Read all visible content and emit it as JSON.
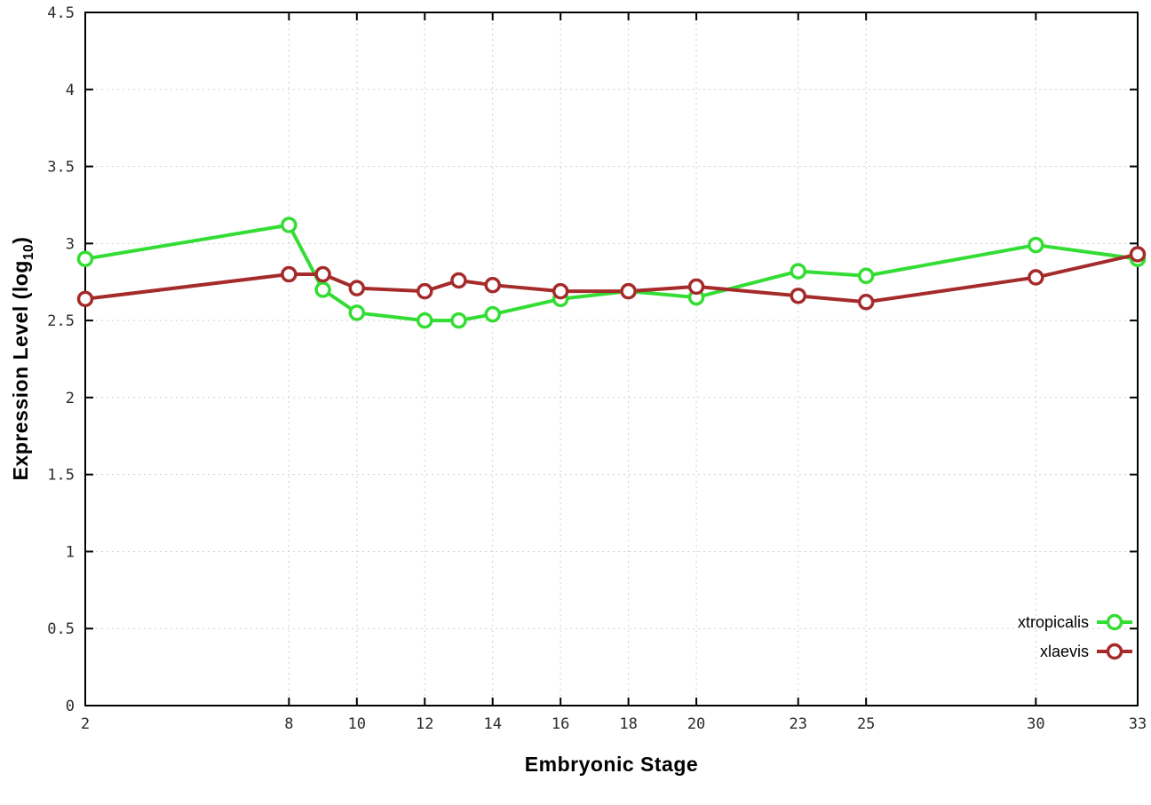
{
  "chart_data": {
    "type": "line",
    "xlabel": "Embryonic Stage",
    "ylabel": "Expression Level (log10)",
    "ylabel_parts": {
      "pre": "Expression Level (log",
      "sub": "10",
      "post": ")"
    },
    "xlim": [
      2,
      33
    ],
    "ylim": [
      0,
      4.5
    ],
    "x_ticks": [
      2,
      8,
      10,
      12,
      14,
      16,
      18,
      20,
      23,
      25,
      30,
      33
    ],
    "x_tick_labels": [
      "2",
      "8",
      "10",
      "12",
      "14",
      "16",
      "18",
      "20",
      "23",
      "25",
      "30",
      "33"
    ],
    "y_ticks": [
      0,
      0.5,
      1,
      1.5,
      2,
      2.5,
      3,
      3.5,
      4,
      4.5
    ],
    "y_tick_labels": [
      "0",
      "0.5",
      "1",
      "1.5",
      "2",
      "2.5",
      "3",
      "3.5",
      "4",
      "4.5"
    ],
    "grid": true,
    "grid_style": "dotted",
    "legend_position": "bottom-right-inside",
    "marker": "open-circle",
    "x": [
      2,
      8,
      9,
      10,
      12,
      13,
      14,
      16,
      18,
      20,
      23,
      25,
      30,
      33
    ],
    "series": [
      {
        "name": "xtropicalis",
        "color": "#33dd33",
        "values": [
          2.9,
          3.12,
          2.7,
          2.55,
          2.5,
          2.5,
          2.54,
          2.64,
          2.69,
          2.65,
          2.82,
          2.79,
          2.99,
          2.9
        ]
      },
      {
        "name": "xlaevis",
        "color": "#a52a2a",
        "values": [
          2.64,
          2.8,
          2.8,
          2.71,
          2.69,
          2.76,
          2.73,
          2.69,
          2.69,
          2.72,
          2.66,
          2.62,
          2.78,
          2.93
        ]
      }
    ],
    "colors": {
      "grid": "#cfcfcf",
      "axis": "#000000",
      "background": "#ffffff",
      "tick_text": "#2b2b2b"
    }
  }
}
